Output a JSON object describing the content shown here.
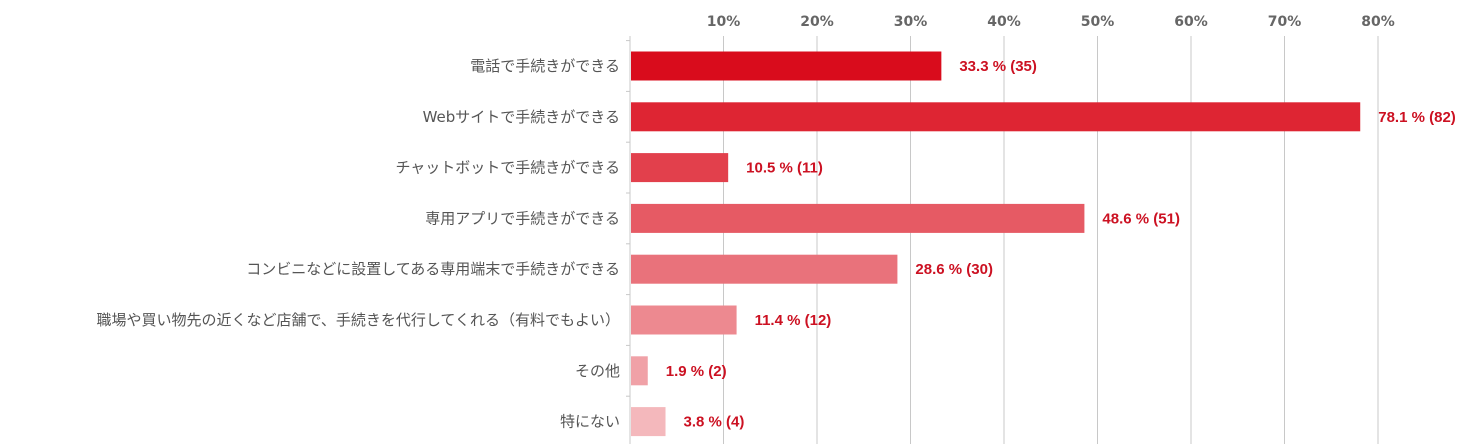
{
  "chart_data": {
    "type": "bar",
    "orientation": "horizontal",
    "categories": [
      "電話で手続きができる",
      "Webサイトで手続きができる",
      "チャットボットで手続きができる",
      "専用アプリで手続きができる",
      "コンビニなどに設置してある専用端末で手続きができる",
      "職場や買い物先の近くなど店舗で、手続きを代行してくれる（有料でもよい）",
      "その他",
      "特にない"
    ],
    "values": [
      33.3,
      78.1,
      10.5,
      48.6,
      28.6,
      11.4,
      1.9,
      3.8
    ],
    "counts": [
      35,
      82,
      11,
      51,
      30,
      12,
      2,
      4
    ],
    "value_labels": [
      "33.3 % (35)",
      "78.1 % (82)",
      "10.5 % (11)",
      "48.6 % (51)",
      "28.6 % (30)",
      "11.4 % (12)",
      "1.9 % (2)",
      "3.8 % (4)"
    ],
    "bar_colors": [
      "#d90c1c",
      "#de2533",
      "#e2404c",
      "#e65a64",
      "#e9727b",
      "#ed8990",
      "#f0a1a7",
      "#f4b8bc"
    ],
    "value_label_color": "#cc1122",
    "x_ticks": [
      10,
      20,
      30,
      40,
      50,
      60,
      70,
      80
    ],
    "x_tick_labels": [
      "10%",
      "20%",
      "30%",
      "40%",
      "50%",
      "60%",
      "70%",
      "80%"
    ],
    "xlim": [
      0,
      90
    ],
    "x_axis_position": "top",
    "grid": true,
    "title": "",
    "xlabel": "",
    "ylabel": ""
  }
}
